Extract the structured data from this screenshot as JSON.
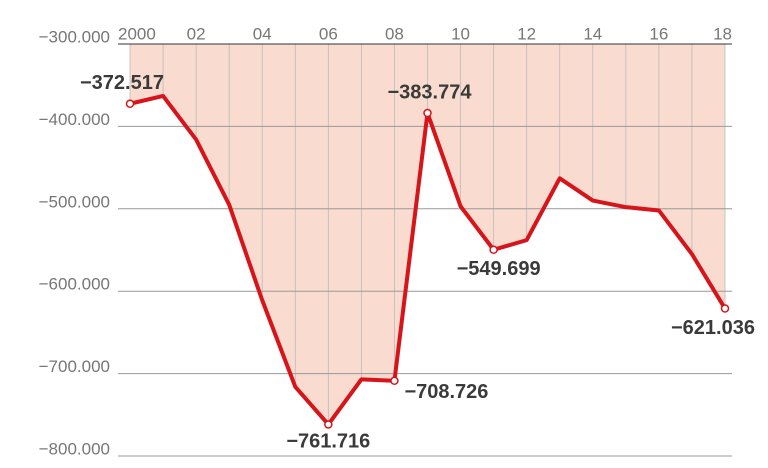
{
  "chart_data": {
    "type": "line",
    "x": [
      2000,
      2001,
      2002,
      2003,
      2004,
      2005,
      2006,
      2007,
      2008,
      2009,
      2010,
      2011,
      2012,
      2013,
      2014,
      2015,
      2016,
      2017,
      2018
    ],
    "series": [
      {
        "color": "#d7141a",
        "fill": "#f9dbcf",
        "values": [
          -372517,
          -363000,
          -416000,
          -495000,
          -611000,
          -716000,
          -761716,
          -707000,
          -708726,
          -383774,
          -497000,
          -549699,
          -538000,
          -463000,
          -490000,
          -498000,
          -502000,
          -555000,
          -621036
        ],
        "value_labels": [
          "−372.517",
          null,
          null,
          null,
          null,
          null,
          "−761.716",
          null,
          "−708.726",
          "−383.774",
          null,
          "−549.699",
          null,
          null,
          null,
          null,
          null,
          null,
          "−621.036"
        ]
      }
    ],
    "xlim": [
      2000,
      2018
    ],
    "xticks": [
      2000,
      {
        "value": 2002,
        "label": "02"
      },
      {
        "value": 2004,
        "label": "04"
      },
      {
        "value": 2006,
        "label": "06"
      },
      {
        "value": 2008,
        "label": "08"
      },
      {
        "value": 2010,
        "label": "10"
      },
      {
        "value": 2012,
        "label": "12"
      },
      {
        "value": 2014,
        "label": "14"
      },
      {
        "value": 2016,
        "label": "16"
      },
      {
        "value": 2018,
        "label": "18"
      }
    ],
    "ylim": [
      -800000,
      -300000
    ],
    "yticks": [
      {
        "value": -300000,
        "label": "−300.000"
      },
      {
        "value": -400000,
        "label": "−400.000"
      },
      {
        "value": -500000,
        "label": "−500.000"
      },
      {
        "value": -600000,
        "label": "−600.000"
      },
      {
        "value": -700000,
        "label": "−700.000"
      },
      {
        "value": -800000,
        "label": "−800.000"
      }
    ],
    "grid": true
  }
}
